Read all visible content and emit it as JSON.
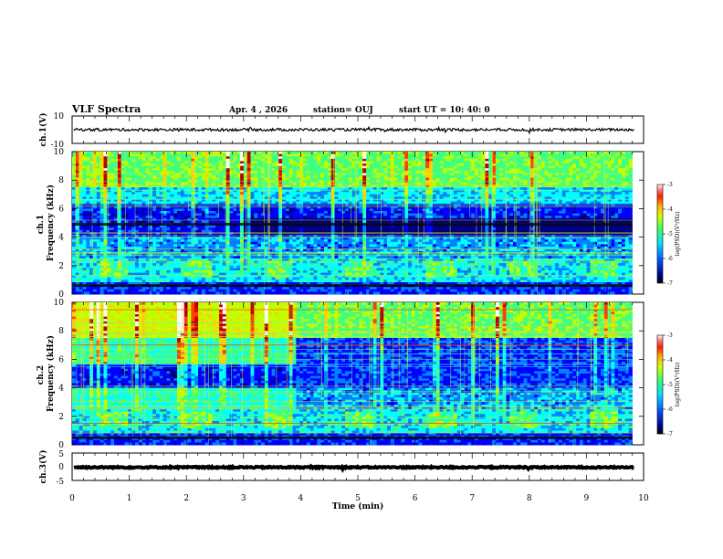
{
  "header": {
    "title": "VLF Spectra",
    "date": "Apr. 4 , 2026",
    "station": "station= OUJ",
    "start": "start  UT =   10: 40: 0"
  },
  "chart_data": [
    {
      "type": "line",
      "name": "ch1-waveform",
      "title": "VLF Spectra",
      "ylabel": "ch.1(V)",
      "ylim": [
        -10,
        10
      ],
      "yticks": [
        "10",
        "-10"
      ],
      "series": [
        {
          "name": "ch.1 waveform",
          "baseline": 0,
          "spread": 1.0
        }
      ],
      "xlim": [
        0,
        10
      ]
    },
    {
      "type": "heatmap",
      "name": "ch1-spectrogram",
      "ylabel": "ch.1\nFrequency (kHz)",
      "ylim": [
        0,
        10
      ],
      "yticks": [
        "0",
        "2",
        "4",
        "6",
        "8",
        "10"
      ],
      "xlim": [
        0,
        9.8
      ],
      "colorbar": {
        "label": "log(PSD)(V²/Hz)",
        "range": [
          -7,
          -3
        ],
        "ticks": [
          "-3",
          "-4",
          "-5",
          "-6",
          "-7"
        ]
      }
    },
    {
      "type": "heatmap",
      "name": "ch2-spectrogram",
      "ylabel": "ch.2\nFrequency (kHz)",
      "ylim": [
        0,
        10
      ],
      "yticks": [
        "0",
        "2",
        "4",
        "6",
        "8",
        "10"
      ],
      "xlim": [
        0,
        9.8
      ],
      "colorbar": {
        "label": "log(PSD)(V²/Hz)",
        "range": [
          -7,
          -3
        ],
        "ticks": [
          "-3",
          "-4",
          "-5",
          "-6",
          "-7"
        ]
      }
    },
    {
      "type": "line",
      "name": "ch3-waveform",
      "ylabel": "ch.3(V)",
      "ylim": [
        -5,
        5
      ],
      "yticks": [
        "5",
        "0",
        "-5"
      ],
      "series": [
        {
          "name": "ch.3 waveform",
          "baseline": -0.2,
          "spread": 0.25
        }
      ],
      "xlim": [
        0,
        10
      ]
    }
  ],
  "xaxis": {
    "label": "Time (min)",
    "range": [
      0,
      10
    ],
    "ticks": [
      "0",
      "1",
      "2",
      "3",
      "4",
      "5",
      "6",
      "7",
      "8",
      "9",
      "10"
    ]
  },
  "colors": {
    "colormap": [
      "#00007f",
      "#0000ff",
      "#0080ff",
      "#00ffff",
      "#40ff80",
      "#c0ff00",
      "#ffd000",
      "#ff4000",
      "#c00000",
      "#ffffff"
    ]
  }
}
